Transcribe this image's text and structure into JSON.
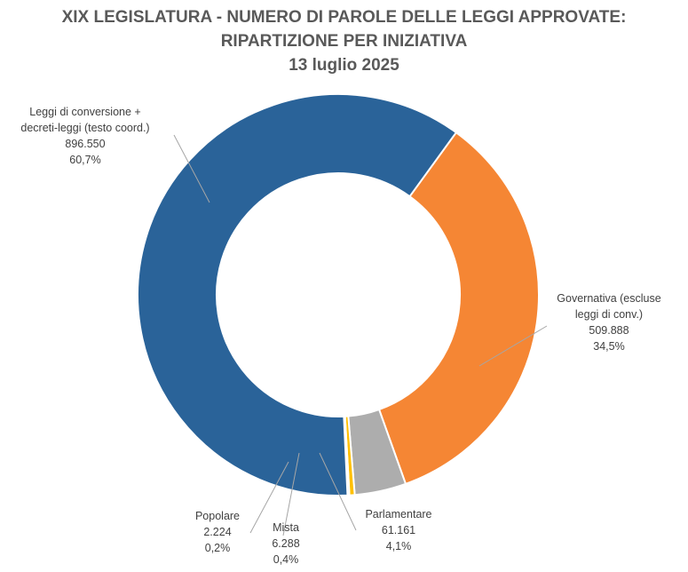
{
  "chart_data": {
    "type": "pie",
    "variant": "donut",
    "title_lines": [
      "XIX LEGISLATURA - NUMERO DI PAROLE DELLE LEGGI APPROVATE:",
      "RIPARTIZIONE PER INIZIATIVA",
      "13 luglio 2025"
    ],
    "slices": [
      {
        "label_lines": [
          "Governativa (escluse",
          "leggi di conv.)"
        ],
        "value": 509888,
        "value_label": "509.888",
        "percent_label": "34,5%",
        "color": "#F58634"
      },
      {
        "label_lines": [
          "Parlamentare"
        ],
        "value": 61161,
        "value_label": "61.161",
        "percent_label": "4,1%",
        "color": "#ADADAD"
      },
      {
        "label_lines": [
          "Mista"
        ],
        "value": 6288,
        "value_label": "6.288",
        "percent_label": "0,4%",
        "color": "#FFC000"
      },
      {
        "label_lines": [
          "Popolare"
        ],
        "value": 2224,
        "value_label": "2.224",
        "percent_label": "0,2%",
        "color": "#4472C4"
      },
      {
        "label_lines": [
          "Leggi di conversione +",
          "decreti-leggi (testo coord.)"
        ],
        "value": 896550,
        "value_label": "896.550",
        "percent_label": "60,7%",
        "color": "#2A6399"
      }
    ],
    "legend": "none",
    "label_position": "outside-with-leader-lines"
  }
}
